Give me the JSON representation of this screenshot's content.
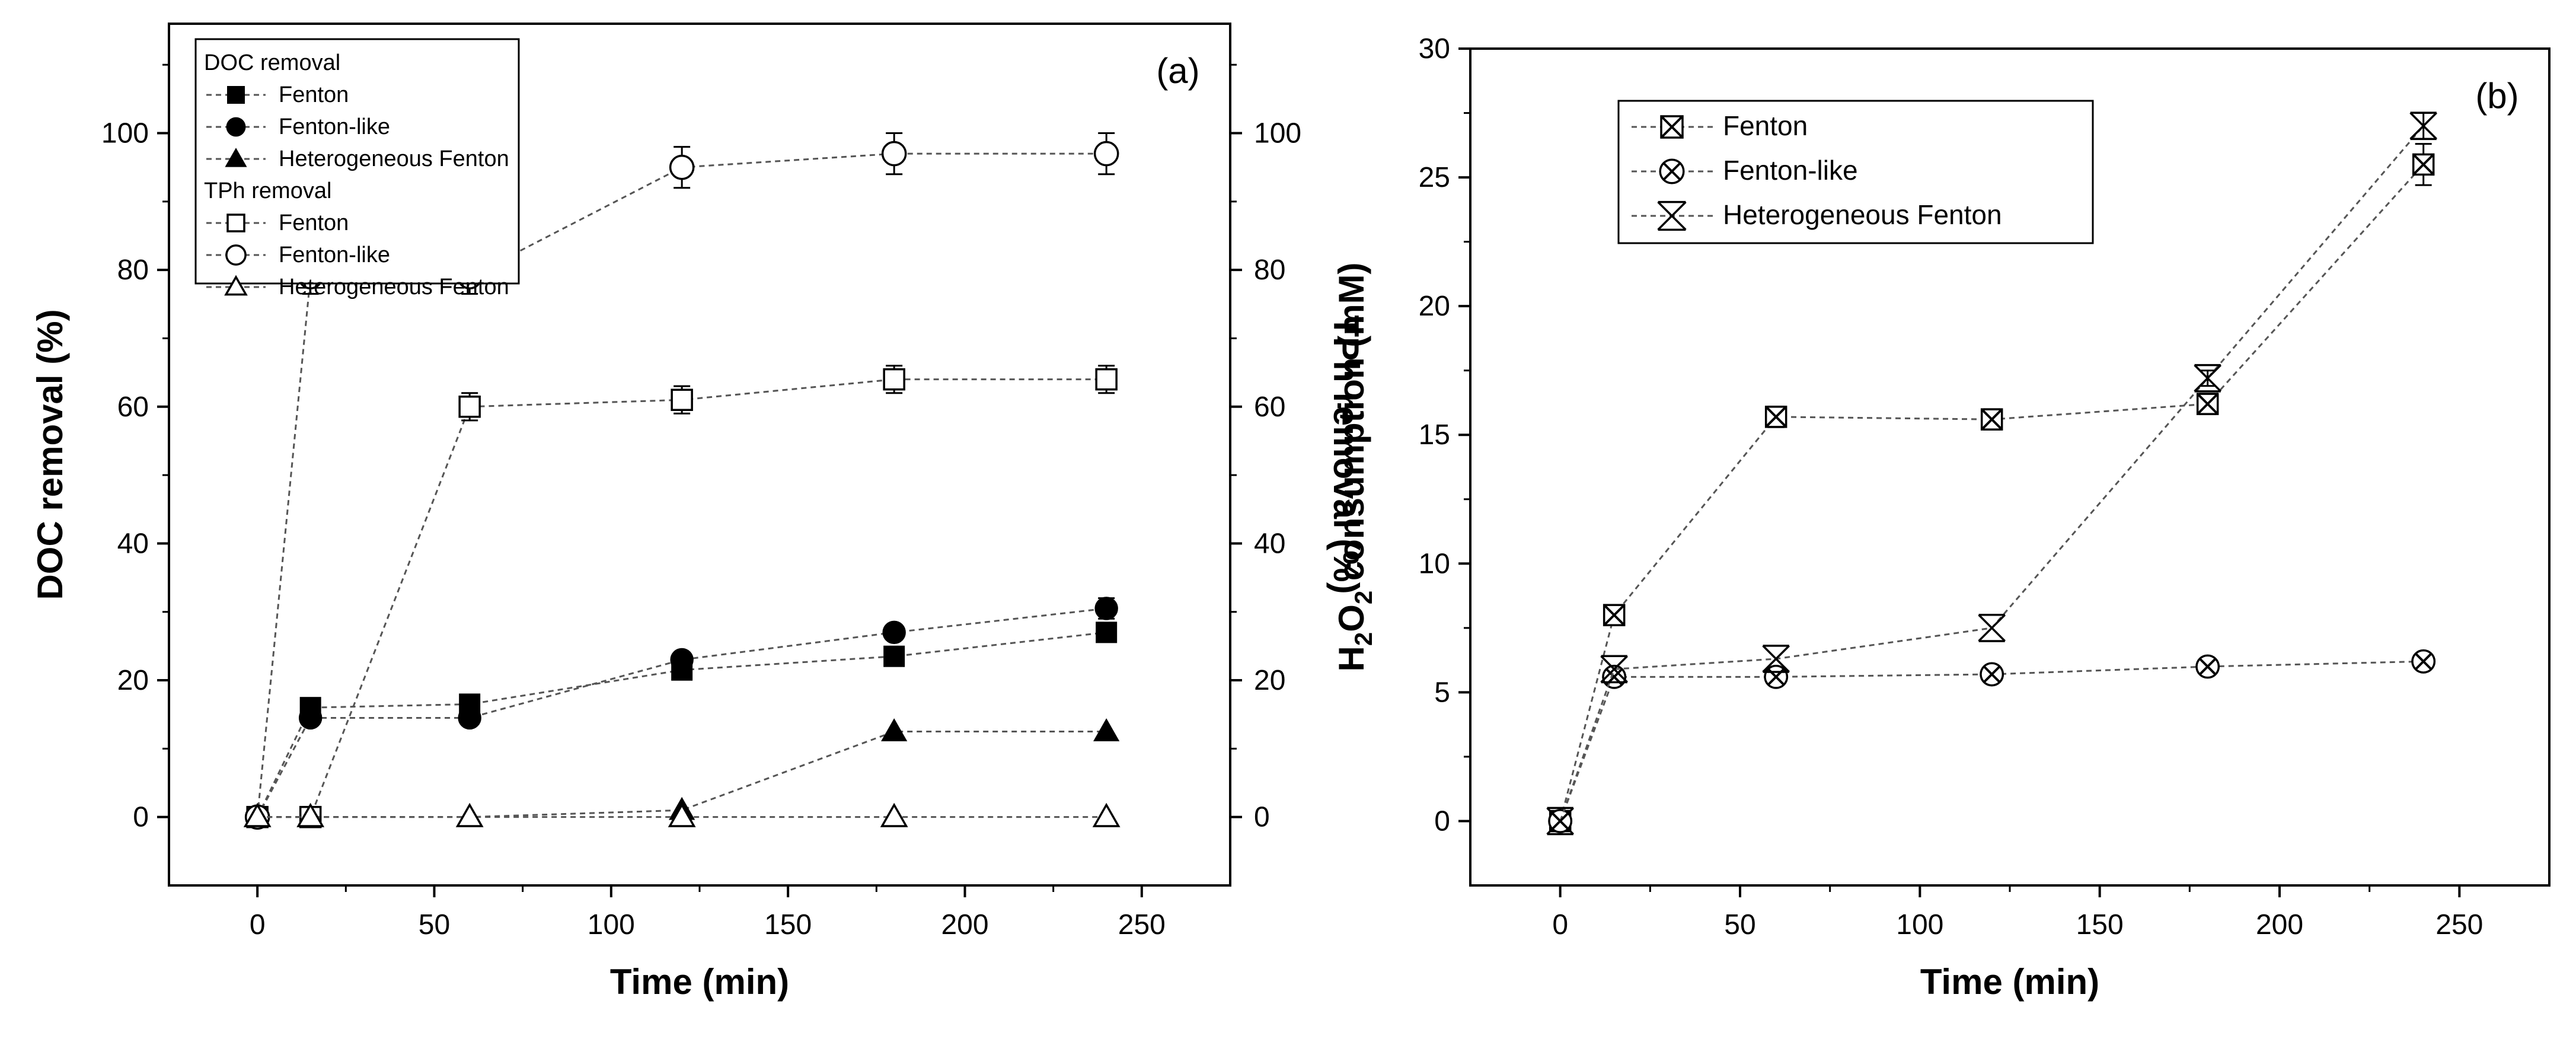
{
  "chart_data": [
    {
      "id": "a",
      "type": "scatter",
      "panel_label": "(a)",
      "xlabel": "Time (min)",
      "ylabel": "DOC removal (%)",
      "y2label": "TPh removal (%)",
      "xlim": [
        -25,
        275
      ],
      "ylim": [
        -10,
        116
      ],
      "y2lim": [
        -10,
        116
      ],
      "xticks": [
        0,
        50,
        100,
        150,
        200,
        250
      ],
      "yticks": [
        0,
        20,
        40,
        60,
        80,
        100
      ],
      "y2ticks": [
        0,
        20,
        40,
        60,
        80,
        100
      ],
      "legend_position": "top-left",
      "legend_groups": [
        {
          "title": "DOC removal",
          "entries": [
            "Fenton",
            "Fenton-like",
            "Heterogeneous Fenton"
          ]
        },
        {
          "title": "TPh removal",
          "entries": [
            "Fenton",
            "Fenton-like",
            "Heterogeneous Fenton"
          ]
        }
      ],
      "series": [
        {
          "group": "DOC removal",
          "name": "Fenton",
          "marker": "square-filled",
          "x": [
            0,
            15,
            60,
            120,
            180,
            240
          ],
          "y": [
            0,
            16,
            16.5,
            21.5,
            23.5,
            27
          ],
          "err": [
            0,
            0,
            0,
            0,
            0,
            0
          ]
        },
        {
          "group": "DOC removal",
          "name": "Fenton-like",
          "marker": "circle-filled",
          "x": [
            0,
            15,
            60,
            120,
            180,
            240
          ],
          "y": [
            0,
            14.5,
            14.5,
            23,
            27,
            30.5
          ],
          "err": [
            0,
            0,
            0,
            0,
            0,
            1.5
          ]
        },
        {
          "group": "DOC removal",
          "name": "Heterogeneous Fenton",
          "marker": "triangle-filled",
          "x": [
            0,
            15,
            60,
            120,
            180,
            240
          ],
          "y": [
            0,
            0,
            0,
            1,
            12.5,
            12.5
          ],
          "err": [
            0,
            0,
            0,
            0,
            0,
            0
          ]
        },
        {
          "group": "TPh removal",
          "name": "Fenton",
          "marker": "square-open",
          "x": [
            0,
            15,
            60,
            120,
            180,
            240
          ],
          "y": [
            0,
            0,
            60,
            61,
            64,
            64
          ],
          "err": [
            0,
            0,
            2,
            2,
            2,
            2
          ]
        },
        {
          "group": "TPh removal",
          "name": "Fenton-like",
          "marker": "circle-open",
          "x": [
            0,
            15,
            60,
            120,
            180,
            240
          ],
          "y": [
            0,
            79,
            79,
            95,
            97,
            97
          ],
          "err": [
            0,
            2.5,
            2.5,
            3,
            3,
            3
          ]
        },
        {
          "group": "TPh removal",
          "name": "Heterogeneous Fenton",
          "marker": "triangle-open",
          "x": [
            0,
            15,
            60,
            120,
            180,
            240
          ],
          "y": [
            0,
            0,
            0,
            0,
            0,
            0
          ],
          "err": [
            0,
            0,
            0,
            0,
            0,
            0
          ]
        }
      ]
    },
    {
      "id": "b",
      "type": "scatter",
      "panel_label": "(b)",
      "xlabel": "Time (min)",
      "ylabel_parts": {
        "pre": "H",
        "sub1": "2",
        "mid": "O",
        "sub2": "2",
        "post": " consumption (mM)"
      },
      "xlim": [
        -25,
        275
      ],
      "ylim": [
        -2.5,
        30
      ],
      "xticks": [
        0,
        50,
        100,
        150,
        200,
        250
      ],
      "yticks": [
        0,
        5,
        10,
        15,
        20,
        25,
        30
      ],
      "legend_position": "top-left",
      "series": [
        {
          "name": "Fenton",
          "marker": "square-x",
          "x": [
            0,
            15,
            60,
            120,
            180,
            240
          ],
          "y": [
            0,
            8,
            15.7,
            15.6,
            16.2,
            25.5
          ],
          "err": [
            0,
            0,
            0.4,
            0.4,
            0.4,
            0.8
          ]
        },
        {
          "name": "Fenton-like",
          "marker": "circle-x",
          "x": [
            0,
            15,
            60,
            120,
            180,
            240
          ],
          "y": [
            0,
            5.6,
            5.6,
            5.7,
            6.0,
            6.2
          ],
          "err": [
            0,
            0,
            0,
            0,
            0,
            0
          ]
        },
        {
          "name": "Heterogeneous Fenton",
          "marker": "star",
          "x": [
            0,
            15,
            60,
            120,
            180,
            240
          ],
          "y": [
            0,
            5.9,
            6.3,
            7.5,
            17.2,
            27
          ],
          "err": [
            0,
            0,
            0,
            0,
            0.3,
            0.5
          ]
        }
      ]
    }
  ]
}
